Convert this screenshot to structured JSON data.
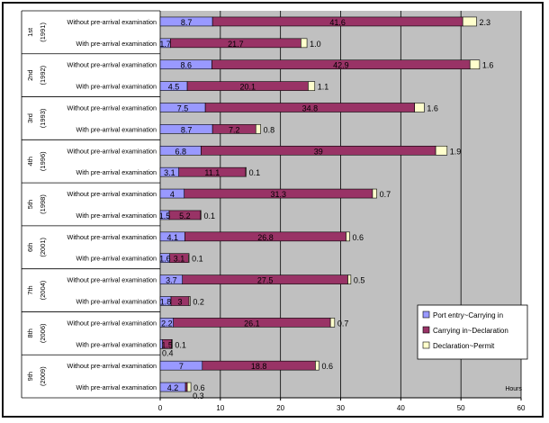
{
  "chart_data": {
    "type": "bar",
    "orientation": "horizontal",
    "stacked": true,
    "xlabel": "Hours",
    "xlim": [
      0,
      60
    ],
    "x_ticks": [
      "0",
      "10",
      "20",
      "30",
      "40",
      "50",
      "60"
    ],
    "grid": "vertical",
    "legend_position": "bottom-right",
    "colors": {
      "series1": "#9999ff",
      "series2": "#993366",
      "series3": "#ffffcc",
      "plot_bg": "#c0c0c0"
    },
    "groups": [
      {
        "survey": "1st",
        "year": "(1991)"
      },
      {
        "survey": "2nd",
        "year": "(1992)"
      },
      {
        "survey": "3rd",
        "year": "(1993)"
      },
      {
        "survey": "4th",
        "year": "(1996)"
      },
      {
        "survey": "5th",
        "year": "(1998)"
      },
      {
        "survey": "6th",
        "year": "(2001)"
      },
      {
        "survey": "7th",
        "year": "(2004)"
      },
      {
        "survey": "8th",
        "year": "(2006)"
      },
      {
        "survey": "9th",
        "year": "(2009)"
      }
    ],
    "categories": [
      "Without pre-arrival examination",
      "With pre-arrival examination",
      "Without pre-arrival examination",
      "With pre-arrival examination",
      "Without pre-arrival examination",
      "With pre-arrival examination",
      "Without pre-arrival examination",
      "With pre-arrival examination",
      "Without pre-arrival examination",
      "With pre-arrival examination",
      "Without pre-arrival examination",
      "With pre-arrival examination",
      "Without pre-arrival examination",
      "With pre-arrival examination",
      "Without pre-arrival examination",
      "With pre-arrival examination",
      "Without pre-arrival examination",
      "With pre-arrival examination"
    ],
    "series": [
      {
        "name": "Port entry~Carrying in",
        "values": [
          8.7,
          1.7,
          8.6,
          4.5,
          7.5,
          8.7,
          6.8,
          3.1,
          4,
          1.5,
          4.1,
          1.6,
          3.7,
          1.8,
          2.2,
          0.4,
          7,
          4.2
        ],
        "labels": [
          "8.7",
          "1.7",
          "8.6",
          "4.5",
          "7.5",
          "8.7",
          "6.8",
          "3.1",
          "4",
          "1.5",
          "4.1",
          "1.6",
          "3.7",
          "1.8",
          "2.2",
          "0.4",
          "7",
          "4.2"
        ]
      },
      {
        "name": "Carrying in~Declaration",
        "values": [
          41.6,
          21.7,
          42.9,
          20.1,
          34.8,
          7.2,
          39,
          11.1,
          31.3,
          5.2,
          26.8,
          3.1,
          27.5,
          3,
          26.1,
          1.5,
          18.8,
          0.3
        ],
        "labels": [
          "41.6",
          "21.7",
          "42.9",
          "20.1",
          "34.8",
          "7.2",
          "39",
          "11.1",
          "31.3",
          "5.2",
          "26.8",
          "3.1",
          "27.5",
          "3",
          "26.1",
          "1.5",
          "18.8",
          "0.3"
        ]
      },
      {
        "name": "Declaration~Permit",
        "values": [
          2.3,
          1.0,
          1.6,
          1.1,
          1.6,
          0.8,
          1.9,
          0.1,
          0.7,
          0.1,
          0.6,
          0.1,
          0.5,
          0.2,
          0.7,
          0.1,
          0.6,
          0.6
        ],
        "labels": [
          "2.3",
          "1.0",
          "1.6",
          "1.1",
          "1.6",
          "0.8",
          "1.9",
          "0.1",
          "0.7",
          "0.1",
          "0.6",
          "0.1",
          "0.5",
          "0.2",
          "0.7",
          "0.1",
          "0.6",
          "0.6"
        ]
      }
    ]
  }
}
